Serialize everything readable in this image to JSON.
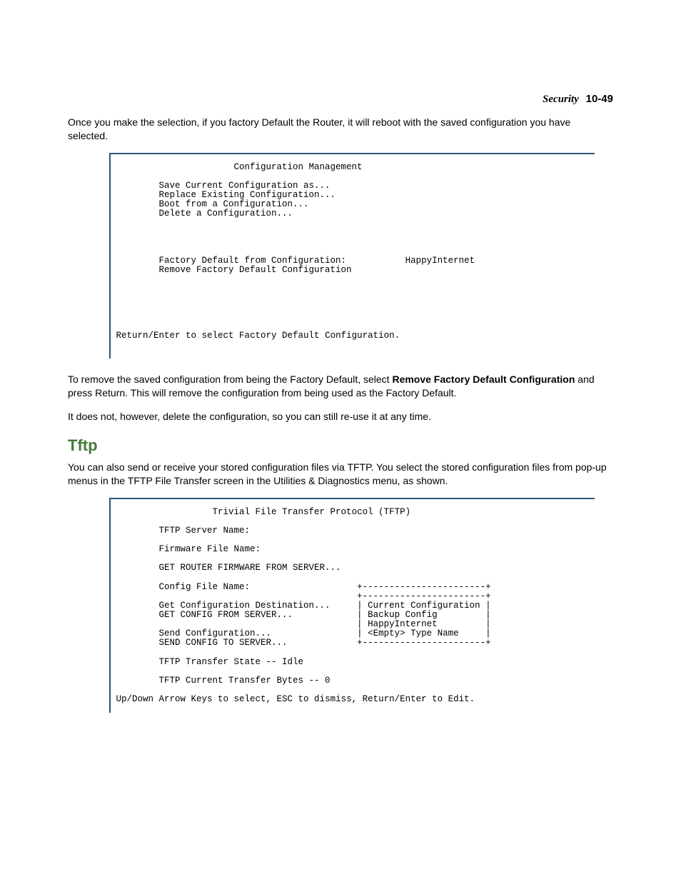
{
  "header": {
    "chapter": "Security",
    "pagenum": "10-49"
  },
  "intro_text": "Once you make the selection, if you factory Default the Router, it will reboot with the saved configuration you have selected.",
  "config_terminal": {
    "title": "Configuration Management",
    "items": [
      "Save Current Configuration as...",
      "Replace Existing Configuration...",
      "Boot from a Configuration...",
      "Delete a Configuration..."
    ],
    "factory_default_label": "Factory Default from Configuration:",
    "factory_default_value": "HappyInternet",
    "remove_label": "Remove Factory Default Configuration",
    "footer": "Return/Enter to select Factory Default Configuration."
  },
  "remove_para": {
    "pre": "To remove the saved configuration from being the Factory Default, select ",
    "bold": "Remove Factory Default Configuration",
    "post": " and press Return. This will remove the configuration from being used as the Factory Default."
  },
  "note_text": "It does not, however, delete the configuration, so you can still re-use it at any time.",
  "section_heading": "Tftp",
  "tftp_intro": "You can also send or receive your stored configuration files via TFTP. You select the stored configuration files from pop-up menus in the TFTP File Transfer screen in the Utilities & Diagnostics menu, as shown.",
  "tftp_terminal": {
    "title": "Trivial File Transfer Protocol (TFTP)",
    "server_label": "TFTP Server Name:",
    "firmware_label": "Firmware File Name:",
    "get_firmware": "GET ROUTER FIRMWARE FROM SERVER...",
    "config_file_label": "Config File Name:",
    "get_dest": "Get Configuration Destination...",
    "get_config": "GET CONFIG FROM SERVER...",
    "send_config": "Send Configuration...",
    "send_server": "SEND CONFIG TO SERVER...",
    "popup": [
      "Current Configuration",
      "Backup Config",
      "HappyInternet",
      "<Empty> Type Name"
    ],
    "state": "TFTP Transfer State -- Idle",
    "bytes": "TFTP Current Transfer Bytes -- 0",
    "footer": "Up/Down Arrow Keys to select, ESC to dismiss, Return/Enter to Edit."
  },
  "colors": {
    "border": "#2c5276",
    "heading": "#447a3a",
    "text": "#000000",
    "background": "#ffffff"
  }
}
